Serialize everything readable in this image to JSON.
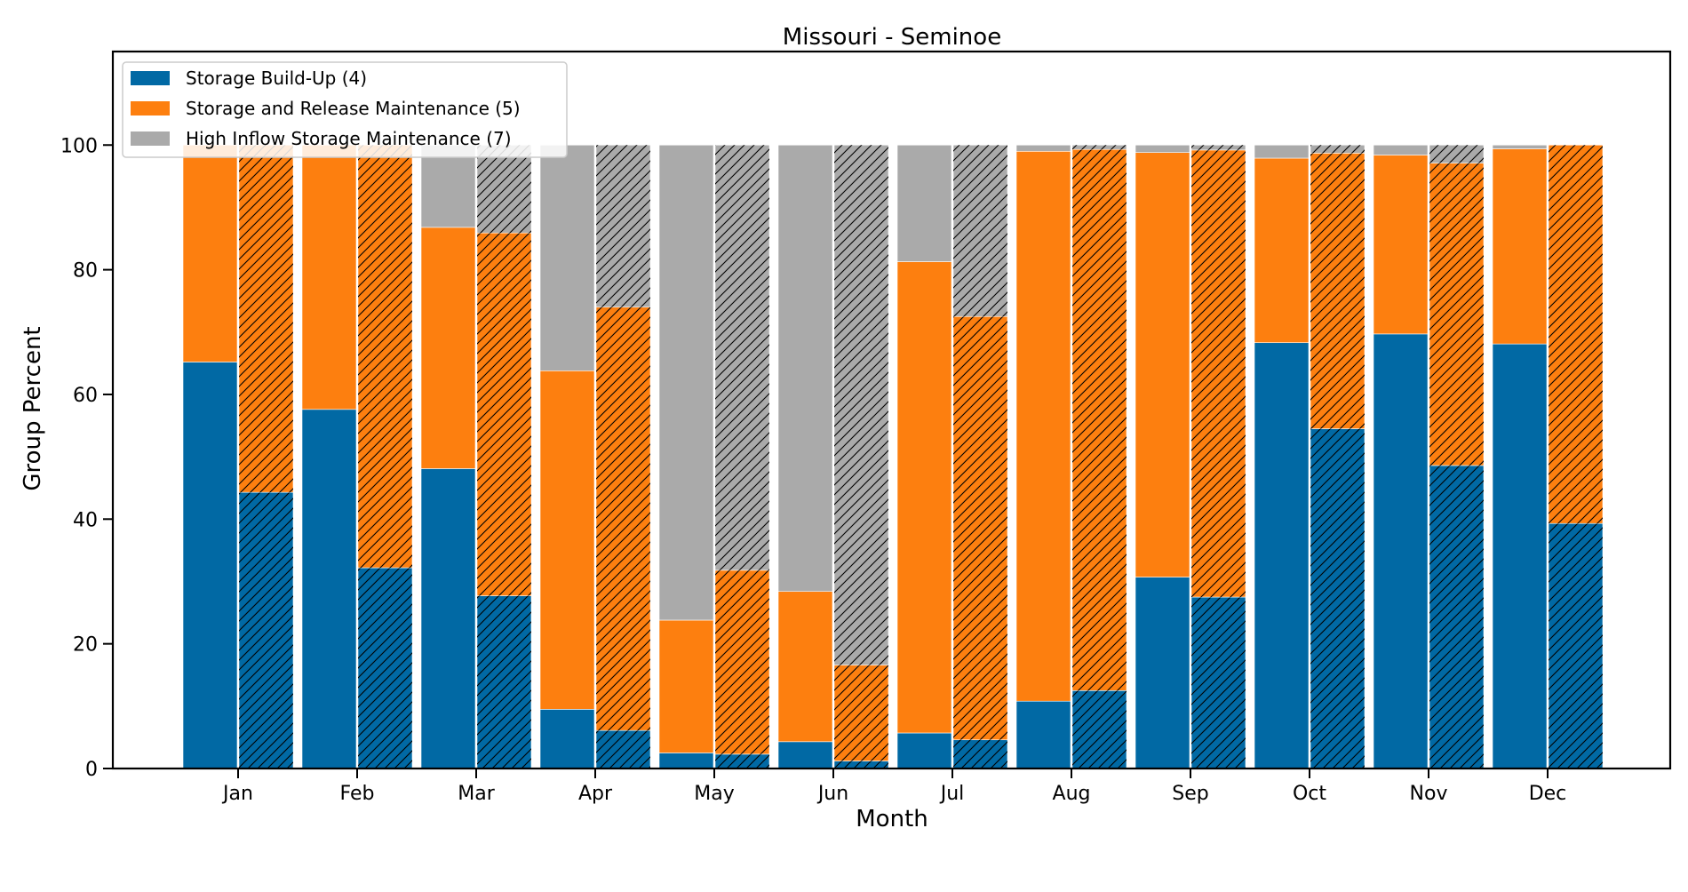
{
  "chart_data": {
    "type": "bar",
    "stacked": true,
    "title": "Missouri - Seminoe",
    "xlabel": "Month",
    "ylabel": "Group Percent",
    "ylim": [
      0,
      115
    ],
    "yticks": [
      0,
      20,
      40,
      60,
      80,
      100
    ],
    "grid": false,
    "legend_position": "top-left",
    "categories": [
      "Jan",
      "Feb",
      "Mar",
      "Apr",
      "May",
      "Jun",
      "Jul",
      "Aug",
      "Sep",
      "Oct",
      "Nov",
      "Dec"
    ],
    "colors": {
      "storage_build_up": "#0169a4",
      "storage_release": "#fd7f0f",
      "high_inflow": "#aaaaaa"
    },
    "series": [
      {
        "name": "Storage Build-Up (4)",
        "key": "storage_build_up",
        "values_solid": [
          65.2,
          57.6,
          48.1,
          9.5,
          2.5,
          4.3,
          5.7,
          10.8,
          30.7,
          68.3,
          69.7,
          68.1
        ],
        "values_hatched": [
          44.3,
          32.2,
          27.7,
          6.1,
          2.3,
          1.2,
          4.6,
          12.5,
          27.5,
          54.5,
          48.6,
          39.3
        ]
      },
      {
        "name": "Storage and Release Maintenance (5)",
        "key": "storage_release",
        "values_solid": [
          34.8,
          42.4,
          38.7,
          54.3,
          21.3,
          24.1,
          75.6,
          88.2,
          68.1,
          29.6,
          28.7,
          31.3
        ],
        "values_hatched": [
          55.7,
          67.8,
          58.2,
          67.9,
          29.5,
          15.4,
          67.9,
          86.8,
          71.7,
          44.2,
          48.5,
          60.7
        ]
      },
      {
        "name": "High Inflow Storage Maintenance (7)",
        "key": "high_inflow",
        "values_solid": [
          0.0,
          0.0,
          13.2,
          36.2,
          76.2,
          71.6,
          18.7,
          1.0,
          1.2,
          2.1,
          1.6,
          0.6
        ],
        "values_hatched": [
          0.0,
          0.0,
          14.1,
          26.0,
          68.2,
          83.4,
          27.5,
          0.7,
          0.8,
          1.3,
          2.9,
          0.0
        ]
      }
    ]
  }
}
